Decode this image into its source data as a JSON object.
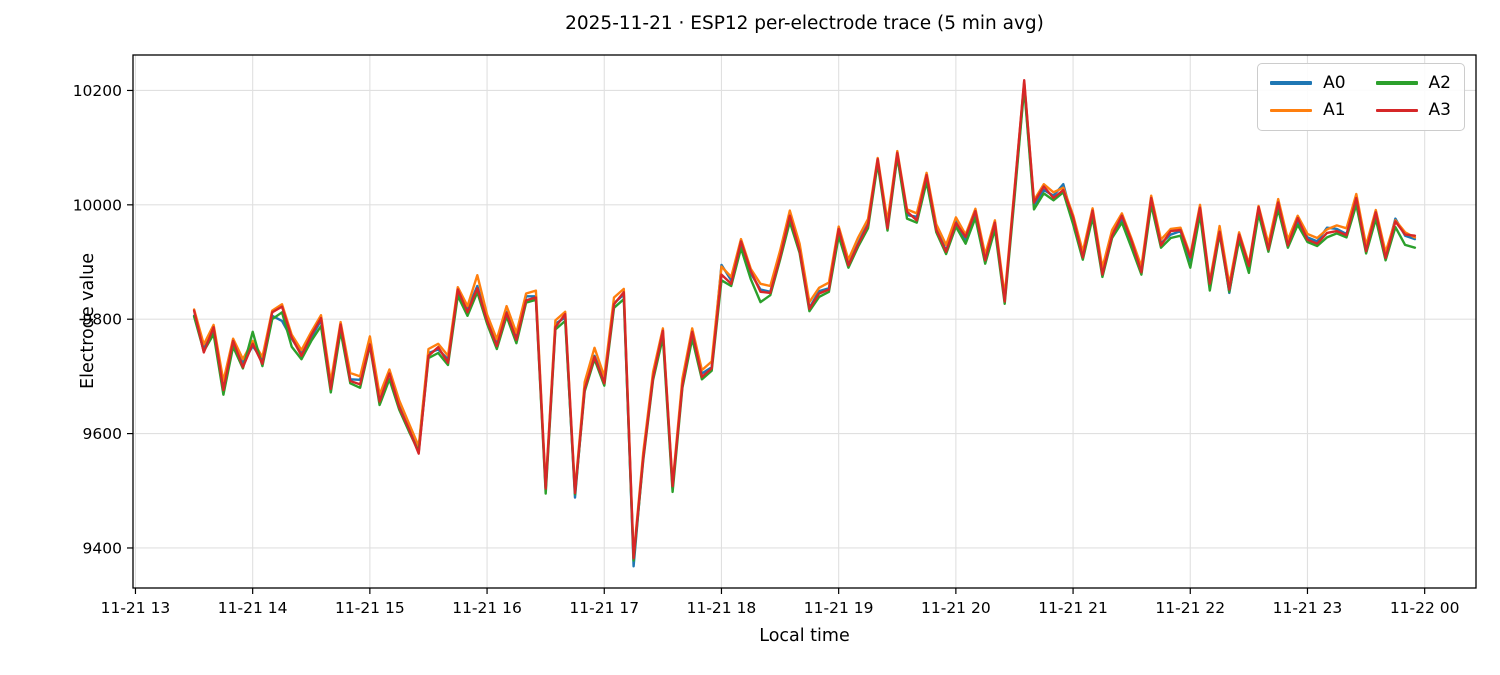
{
  "chart_data": {
    "type": "line",
    "title": "2025-11-21 · ESP12 per-electrode trace (5 min avg)",
    "xlabel": "Local time",
    "ylabel": "Electrode value",
    "grid": true,
    "legend_position": "upper right",
    "legend_columns": 2,
    "xlim_hours": [
      12.979,
      24.438
    ],
    "ylim": [
      9330,
      10262
    ],
    "x_start_hour": 13.5,
    "x_step_hours": 0.0833333,
    "x_ticks": [
      {
        "hour": 13,
        "label": "11-21 13"
      },
      {
        "hour": 14,
        "label": "11-21 14"
      },
      {
        "hour": 15,
        "label": "11-21 15"
      },
      {
        "hour": 16,
        "label": "11-21 16"
      },
      {
        "hour": 17,
        "label": "11-21 17"
      },
      {
        "hour": 18,
        "label": "11-21 18"
      },
      {
        "hour": 19,
        "label": "11-21 19"
      },
      {
        "hour": 20,
        "label": "11-21 20"
      },
      {
        "hour": 21,
        "label": "11-21 21"
      },
      {
        "hour": 22,
        "label": "11-21 22"
      },
      {
        "hour": 23,
        "label": "11-21 23"
      },
      {
        "hour": 24,
        "label": "11-22 00"
      }
    ],
    "y_ticks": [
      9400,
      9600,
      9800,
      10000,
      10200
    ],
    "series": [
      {
        "name": "A0",
        "color": "#1f77b4",
        "values": [
          9806,
          9750,
          9780,
          9684,
          9757,
          9724,
          9753,
          9729,
          9806,
          9797,
          9766,
          9740,
          9768,
          9798,
          9685,
          9789,
          9695,
          9694,
          9764,
          9662,
          9709,
          9652,
          9612,
          9574,
          9741,
          9747,
          9730,
          9847,
          9817,
          9858,
          9801,
          9759,
          9813,
          9770,
          9840,
          9840,
          9502,
          9792,
          9803,
          9488,
          9682,
          9736,
          9694,
          9828,
          9843,
          9368,
          9562,
          9702,
          9776,
          9504,
          9690,
          9774,
          9705,
          9716,
          9895,
          9868,
          9930,
          9880,
          9852,
          9848,
          9914,
          9975,
          9926,
          9820,
          9849,
          9854,
          9953,
          9898,
          9933,
          9969,
          10075,
          9961,
          10086,
          9982,
          9979,
          10046,
          9960,
          9920,
          9972,
          9938,
          9983,
          9907,
          9963,
          9835,
          10018,
          10208,
          9998,
          10026,
          10016,
          10036,
          9972,
          9912,
          9984,
          9880,
          9950,
          9975,
          9930,
          9886,
          10006,
          9933,
          9948,
          9954,
          9902,
          9989,
          9856,
          9957,
          9846,
          9946,
          9887,
          9990,
          9926,
          9998,
          9933,
          9971,
          9943,
          9936,
          9960,
          9958,
          9949,
          10006,
          9923,
          9981,
          9911,
          9976,
          9946,
          9940
        ]
      },
      {
        "name": "A1",
        "color": "#ff7f0e",
        "values": [
          9817,
          9756,
          9790,
          9692,
          9766,
          9730,
          9762,
          9734,
          9815,
          9826,
          9773,
          9746,
          9778,
          9807,
          9690,
          9795,
          9706,
          9700,
          9770,
          9668,
          9712,
          9658,
          9618,
          9578,
          9748,
          9757,
          9736,
          9856,
          9823,
          9877,
          9808,
          9765,
          9823,
          9776,
          9845,
          9850,
          9508,
          9798,
          9813,
          9500,
          9690,
          9750,
          9700,
          9838,
          9853,
          9385,
          9568,
          9708,
          9784,
          9512,
          9696,
          9784,
          9711,
          9726,
          9892,
          9874,
          9940,
          9888,
          9862,
          9858,
          9920,
          9990,
          9932,
          9830,
          9855,
          9864,
          9962,
          9904,
          9943,
          9975,
          10082,
          9971,
          10094,
          9992,
          9985,
          10056,
          9966,
          9930,
          9978,
          9948,
          9993,
          9913,
          9973,
          9841,
          10028,
          10215,
          10008,
          10036,
          10022,
          10030,
          9982,
          9918,
          9994,
          9890,
          9956,
          9985,
          9940,
          9892,
          10016,
          9939,
          9958,
          9960,
          9912,
          10000,
          9866,
          9963,
          9861,
          9952,
          9897,
          9998,
          9932,
          10010,
          9939,
          9981,
          9949,
          9942,
          9957,
          9964,
          9959,
          10019,
          9929,
          9991,
          9917,
          9973,
          9952,
          9943
        ]
      },
      {
        "name": "A2",
        "color": "#2ca02c",
        "values": [
          9805,
          9744,
          9774,
          9668,
          9752,
          9714,
          9778,
          9718,
          9800,
          9812,
          9752,
          9730,
          9762,
          9788,
          9672,
          9779,
          9688,
          9680,
          9754,
          9650,
          9695,
          9642,
          9604,
          9568,
          9732,
          9741,
          9720,
          9841,
          9806,
          9847,
          9792,
          9748,
          9805,
          9758,
          9829,
          9834,
          9495,
          9782,
          9797,
          9494,
          9674,
          9730,
          9684,
          9820,
          9835,
          9378,
          9554,
          9694,
          9768,
          9498,
          9680,
          9766,
          9695,
          9710,
          9868,
          9858,
          9924,
          9870,
          9830,
          9842,
          9904,
          9970,
          9916,
          9814,
          9839,
          9848,
          9945,
          9890,
          9927,
          9959,
          10072,
          9955,
          10084,
          9976,
          9969,
          10040,
          9952,
          9914,
          9962,
          9932,
          9977,
          9897,
          9957,
          9827,
          10012,
          10205,
          9992,
          10020,
          10008,
          10022,
          9966,
          9904,
          9978,
          9874,
          9942,
          9969,
          9924,
          9878,
          10000,
          9925,
          9942,
          9946,
          9890,
          9983,
          9850,
          9949,
          9848,
          9938,
          9881,
          9984,
          9918,
          9992,
          9925,
          9965,
          9935,
          9928,
          9943,
          9950,
          9943,
          10000,
          9915,
          9975,
          9903,
          9961,
          9930,
          9925
        ]
      },
      {
        "name": "A3",
        "color": "#d62728",
        "values": [
          9815,
          9742,
          9786,
          9676,
          9762,
          9716,
          9757,
          9722,
          9812,
          9822,
          9768,
          9736,
          9772,
          9802,
          9678,
          9791,
          9692,
          9686,
          9756,
          9656,
          9705,
          9646,
          9608,
          9565,
          9736,
          9751,
          9724,
          9852,
          9812,
          9854,
          9797,
          9753,
          9811,
          9764,
          9833,
          9838,
          9504,
          9786,
          9809,
          9496,
          9678,
          9734,
          9688,
          9826,
          9847,
          9382,
          9558,
          9698,
          9780,
          9508,
          9684,
          9778,
          9699,
          9714,
          9878,
          9862,
          9936,
          9884,
          9848,
          9846,
          9908,
          9981,
          9920,
          9818,
          9845,
          9852,
          9958,
          9894,
          9931,
          9965,
          10080,
          9959,
          10091,
          9988,
          9973,
          10052,
          9956,
          9918,
          9968,
          9944,
          9989,
          9903,
          9969,
          9831,
          10024,
          10218,
          10004,
          10032,
          10012,
          10026,
          9978,
          9908,
          9990,
          9878,
          9946,
          9981,
          9936,
          9882,
          10012,
          9929,
          9954,
          9956,
          9908,
          9995,
          9862,
          9953,
          9852,
          9948,
          9893,
          9996,
          9922,
          10004,
          9929,
          9977,
          9939,
          9932,
          9951,
          9954,
          9947,
          10012,
          9919,
          9987,
          9907,
          9971,
          9948,
          9946
        ]
      }
    ],
    "style": {
      "grid_color": "#e0e0e0",
      "spine_color": "#000000",
      "background": "#ffffff",
      "line_width": 2.4
    }
  }
}
